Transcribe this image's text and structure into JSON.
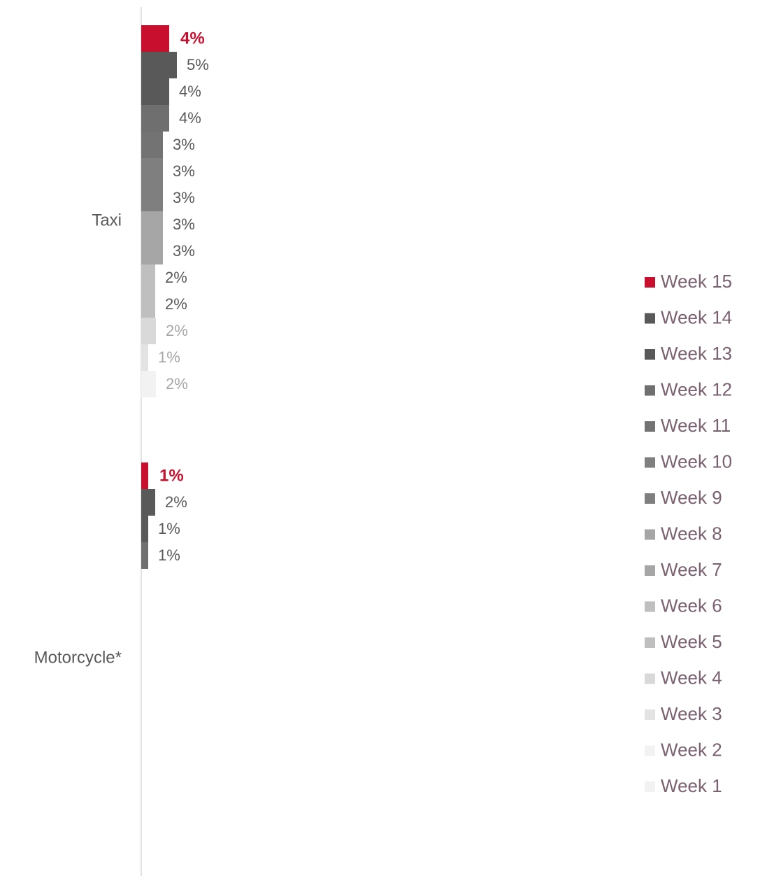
{
  "chart_data": {
    "type": "hbar",
    "categories": [
      "Taxi",
      "Motorcycle*"
    ],
    "series": [
      {
        "name": "Week 15",
        "color": "#c8102e",
        "values": [
          4.0,
          1.0
        ],
        "value_labels": [
          "4%",
          "1%"
        ]
      },
      {
        "name": "Week 14",
        "color": "#595959",
        "values": [
          5.1,
          2.0
        ],
        "value_labels": [
          "5%",
          "2%"
        ]
      },
      {
        "name": "Week 13",
        "color": "#595959",
        "values": [
          4.0,
          1.0
        ],
        "value_labels": [
          "4%",
          "1%"
        ]
      },
      {
        "name": "Week 12",
        "color": "#6f6f6f",
        "values": [
          4.0,
          1.0
        ],
        "value_labels": [
          "4%",
          "1%"
        ]
      },
      {
        "name": "Week 11",
        "color": "#737373",
        "values": [
          3.1,
          null
        ],
        "value_labels": [
          "3%",
          null
        ]
      },
      {
        "name": "Week 10",
        "color": "#7f7f7f",
        "values": [
          3.1,
          null
        ],
        "value_labels": [
          "3%",
          null
        ]
      },
      {
        "name": "Week 9",
        "color": "#7f7f7f",
        "values": [
          3.1,
          null
        ],
        "value_labels": [
          "3%",
          null
        ]
      },
      {
        "name": "Week 8",
        "color": "#a6a6a6",
        "values": [
          3.1,
          null
        ],
        "value_labels": [
          "3%",
          null
        ]
      },
      {
        "name": "Week 7",
        "color": "#a6a6a6",
        "values": [
          3.1,
          null
        ],
        "value_labels": [
          "3%",
          null
        ]
      },
      {
        "name": "Week 6",
        "color": "#bfbfbf",
        "values": [
          2.0,
          null
        ],
        "value_labels": [
          "2%",
          null
        ]
      },
      {
        "name": "Week 5",
        "color": "#bfbfbf",
        "values": [
          2.0,
          null
        ],
        "value_labels": [
          "2%",
          null
        ]
      },
      {
        "name": "Week 4",
        "color": "#d9d9d9",
        "values": [
          2.1,
          null
        ],
        "value_labels": [
          "2%",
          null
        ]
      },
      {
        "name": "Week 3",
        "color": "#e3e3e3",
        "values": [
          1.0,
          null
        ],
        "value_labels": [
          "1%",
          null
        ]
      },
      {
        "name": "Week 2",
        "color": "#f2f2f2",
        "values": [
          2.1,
          null
        ],
        "value_labels": [
          "2%",
          null
        ]
      },
      {
        "name": "Week 1",
        "color": "#f2f2f2",
        "values": [
          null,
          null
        ],
        "value_labels": [
          null,
          null
        ]
      }
    ],
    "legend": "right"
  }
}
